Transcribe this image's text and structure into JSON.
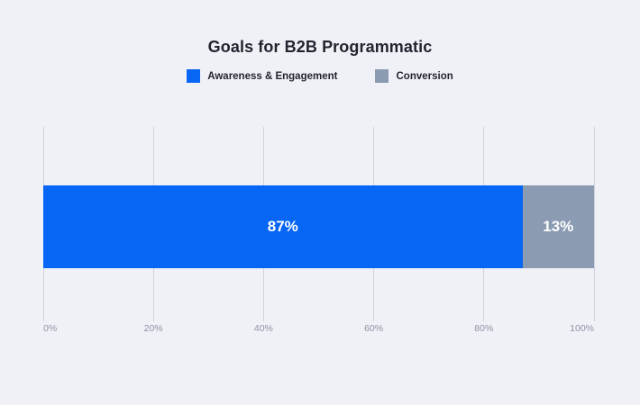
{
  "title": "Goals for B2B Programmatic",
  "colors": {
    "background": "#F0F1F6",
    "awareness_blue": "#0866F5",
    "conversion_gray": "#8A9BB2",
    "gridline": "#CDD2DD",
    "tick_label": "#8C93A3",
    "title_text": "#1F242E",
    "bar_value_text": "#FFFFFF"
  },
  "legend": [
    {
      "label": "Awareness & Engagement",
      "color": "#0866F5"
    },
    {
      "label": "Conversion",
      "color": "#8A9BB2"
    }
  ],
  "chart_data": {
    "type": "bar",
    "orientation": "horizontal",
    "stacked": true,
    "title": "Goals for B2B Programmatic",
    "categories": [
      "Goals for B2B Programmatic"
    ],
    "series": [
      {
        "name": "Awareness & Engagement",
        "values": [
          87
        ],
        "color": "#0866F5",
        "data_label": "87%"
      },
      {
        "name": "Conversion",
        "values": [
          13
        ],
        "color": "#8A9BB2",
        "data_label": "13%"
      }
    ],
    "xlabel": "",
    "ylabel": "",
    "xlim": [
      0,
      100
    ],
    "x_tick_values": [
      0,
      20,
      40,
      60,
      80,
      100
    ],
    "x_tick_labels": [
      "0%",
      "20%",
      "40%",
      "60%",
      "80%",
      "100%"
    ],
    "grid": true,
    "legend_position": "top"
  }
}
